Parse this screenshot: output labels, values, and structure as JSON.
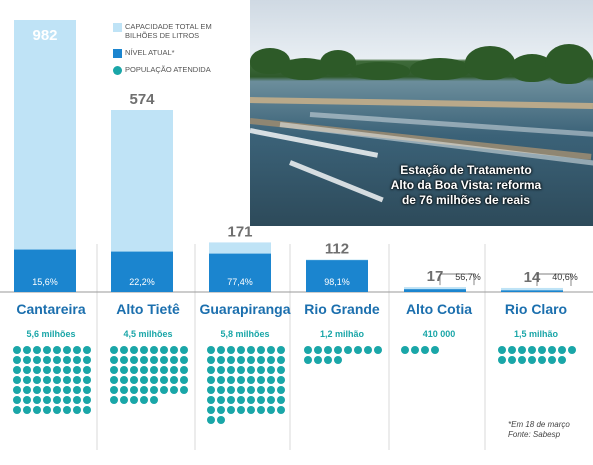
{
  "chart_data": {
    "type": "bar",
    "categories": [
      "Cantareira",
      "Alto Tietê",
      "Guarapiranga",
      "Rio Grande",
      "Alto Cotia",
      "Rio Claro"
    ],
    "series": [
      {
        "name": "CAPACIDADE TOTAL EM BILHÕES DE LITROS",
        "values": [
          982,
          574,
          171,
          112,
          17,
          14
        ]
      },
      {
        "name": "NÍVEL ATUAL*",
        "values": [
          15.6,
          22.2,
          77.4,
          98.1,
          56.7,
          40.6
        ]
      },
      {
        "name": "POPULAÇÃO ATENDIDA",
        "values": [
          5.6,
          4.5,
          5.8,
          1.2,
          0.41,
          1.5
        ]
      }
    ],
    "capacity_labels": [
      "982",
      "574",
      "171",
      "112",
      "17",
      "14"
    ],
    "level_labels": [
      "15,6%",
      "22,2%",
      "77,4%",
      "98,1%",
      "56,7%",
      "40,6%"
    ],
    "population_labels": [
      "5,6 milhões",
      "4,5 milhões",
      "5,8 milhões",
      "1,2 milhão",
      "410 000",
      "1,5 milhão"
    ],
    "population_dot_counts": [
      56,
      45,
      58,
      12,
      4,
      15
    ],
    "colors": {
      "capacity": "#bfe3f6",
      "level": "#1b85cf",
      "population": "#1aa6a8",
      "name": "#1b6fae"
    }
  },
  "legend": {
    "capacity": "CAPACIDADE TOTAL EM BILHÕES DE LITROS",
    "level": "NÍVEL ATUAL*",
    "population": "POPULAÇÃO ATENDIDA"
  },
  "photo": {
    "caption_line1": "Estação de Tratamento",
    "caption_line2": "Alto da Boa Vista: reforma",
    "caption_line3": "de 76 milhões de reais"
  },
  "footnote": {
    "line1": "*Em 18 de março",
    "line2": "Fonte: Sabesp"
  }
}
